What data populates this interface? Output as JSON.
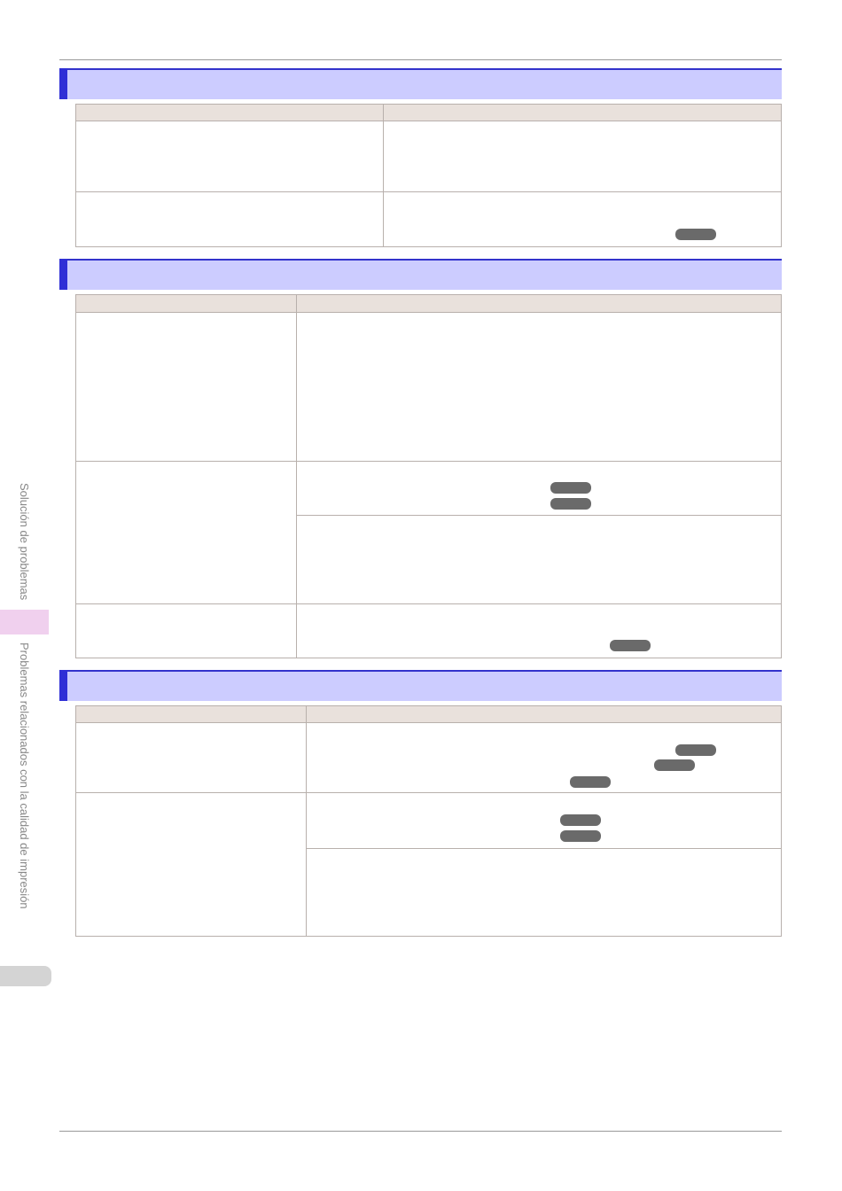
{
  "sidebar": {
    "chapter": "Solución de problemas",
    "section": "Problemas relacionados con la calidad de impresión"
  }
}
